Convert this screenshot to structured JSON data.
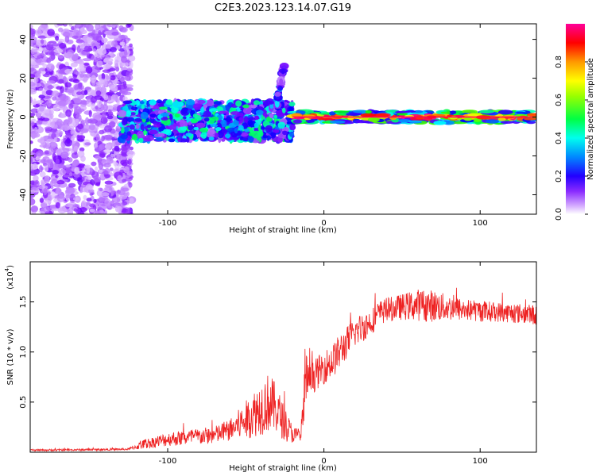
{
  "title": "C2E3.2023.123.14.07.G19",
  "chart_data": [
    {
      "type": "heatmap",
      "xlabel": "Height of straight line (km)",
      "ylabel": "Frequency (Hz)",
      "xlim": [
        -188,
        136
      ],
      "ylim": [
        -50,
        48
      ],
      "x_ticks": [
        -100,
        0,
        100
      ],
      "y_ticks": [
        40,
        20,
        0,
        -20,
        -40
      ],
      "colorbar": {
        "label": "Normalized spectral amplitude",
        "range": [
          0,
          1
        ],
        "ticks": [
          0.0,
          0.2,
          0.4,
          0.6,
          0.8
        ],
        "colors": [
          "#ffffff",
          "#cc99ff",
          "#7700ff",
          "#0000ff",
          "#00ffff",
          "#00ff00",
          "#ffff00",
          "#ff8800",
          "#ff0000",
          "#ff00aa"
        ]
      },
      "regions": [
        {
          "x": [
            -188,
            -123
          ],
          "freq": [
            -50,
            48
          ],
          "amplitude": 0.15
        },
        {
          "x": [
            -130,
            -20
          ],
          "freq": [
            -12,
            8
          ],
          "amplitude": 0.35
        },
        {
          "x": [
            -30,
            -25
          ],
          "freq": [
            8,
            28
          ],
          "amplitude": 0.3
        },
        {
          "x": [
            -20,
            136
          ],
          "freq": [
            -3,
            3
          ],
          "amplitude": 0.7
        }
      ]
    },
    {
      "type": "line",
      "xlabel": "Height of straight line (km)",
      "ylabel": "SNR (10 * v/v)",
      "y_scale_label": "(x10",
      "y_scale_exp": "4",
      "xlim": [
        -188,
        136
      ],
      "ylim": [
        0,
        19000
      ],
      "x_ticks": [
        -100,
        0,
        100
      ],
      "y_ticks": [
        0.5,
        1.0,
        1.5
      ],
      "color": "#ee2222",
      "envelope": {
        "x": [
          -188,
          -150,
          -125,
          -115,
          -100,
          -85,
          -70,
          -60,
          -50,
          -40,
          -35,
          -30,
          -25,
          -20,
          -15,
          -13,
          -12,
          -10,
          -5,
          0,
          5,
          10,
          15,
          20,
          25,
          30,
          35,
          40,
          50,
          60,
          70,
          80,
          90,
          100,
          110,
          120,
          130,
          136
        ],
        "mean": [
          200,
          250,
          300,
          800,
          1300,
          1500,
          1700,
          2200,
          3200,
          4500,
          5000,
          4200,
          2800,
          1800,
          1500,
          4000,
          8000,
          7000,
          7800,
          8500,
          9000,
          10000,
          11000,
          12000,
          12500,
          13000,
          13800,
          14200,
          14500,
          14700,
          14600,
          14400,
          14200,
          14100,
          14000,
          13900,
          13800,
          13700
        ],
        "amp": [
          100,
          100,
          100,
          500,
          700,
          800,
          900,
          1100,
          1900,
          2800,
          3000,
          2400,
          1700,
          900,
          700,
          2800,
          3200,
          1600,
          1600,
          1700,
          1700,
          1800,
          1600,
          1500,
          1500,
          1300,
          1300,
          1200,
          1300,
          1600,
          1600,
          1300,
          1100,
          1100,
          1000,
          1000,
          1000,
          1000
        ]
      }
    }
  ]
}
